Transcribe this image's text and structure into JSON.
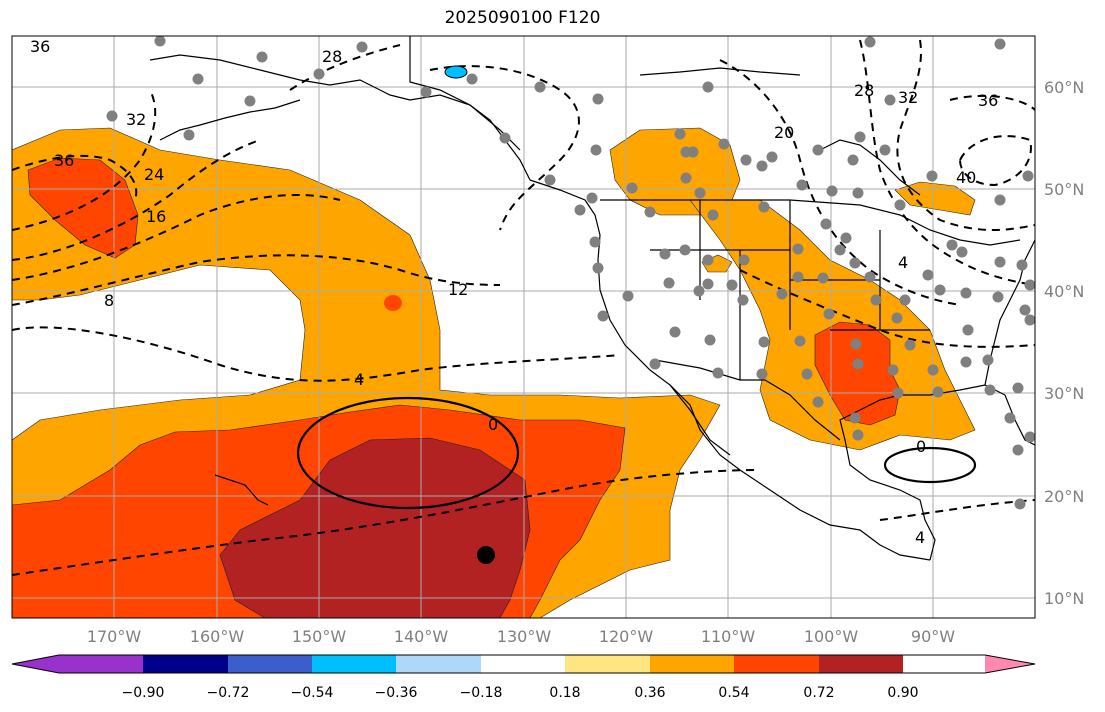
{
  "title": "2025090100 F120",
  "colors": {
    "shade_036_054": "#ffa500",
    "shade_054_072": "#ff4500",
    "shade_072_090": "#b22222",
    "colorbar": [
      "#9932cc",
      "#00008b",
      "#3a5fcd",
      "#00bfff",
      "#add8fa",
      "#ffffff",
      "#ffe680",
      "#ffa500",
      "#ff4500",
      "#b22222",
      "#ff88b0"
    ],
    "station_dot": "#808080",
    "neg_anomaly_lake": "#00bfff",
    "grid": "#aaaaaa"
  },
  "axes": {
    "lon_labels": [
      "170°W",
      "160°W",
      "150°W",
      "140°W",
      "130°W",
      "120°W",
      "110°W",
      "100°W",
      "90°W"
    ],
    "lat_labels": [
      "60°N",
      "50°N",
      "40°N",
      "30°N",
      "20°N",
      "10°N"
    ]
  },
  "colorbar": {
    "tick_labels": [
      "−0.90",
      "−0.72",
      "−0.54",
      "−0.36",
      "−0.18",
      "0.18",
      "0.36",
      "0.54",
      "0.72",
      "0.90"
    ]
  },
  "contour_labels": [
    "36",
    "28",
    "32",
    "36",
    "24",
    "16",
    "8",
    "12",
    "4",
    "0",
    "0",
    "4",
    "20",
    "28",
    "32",
    "36",
    "40",
    "4"
  ],
  "markers": {
    "storm_center": "black dot",
    "stations": "gray dots"
  }
}
